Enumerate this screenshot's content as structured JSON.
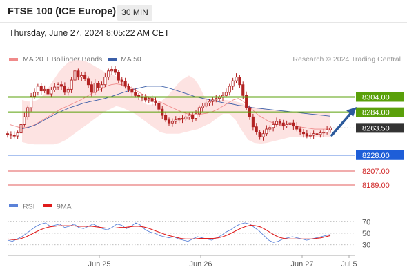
{
  "header": {
    "title": "FTSE 100 (ICE Europe)",
    "timeframe": "30 MIN",
    "datetime": "Thursday, June 27, 2024 8:05:22 AM CET",
    "credit": "Research © 2024 Trading Central"
  },
  "legend": {
    "bollinger": "MA 20 + Bollinger Bands",
    "ma50": "MA 50",
    "rsi": "RSI",
    "ma9": "9MA"
  },
  "colors": {
    "bollinger_line": "#f08a8a",
    "bollinger_fill": "#fde0df",
    "ma50": "#3b5ea8",
    "candle": "#b22222",
    "resistance": "#5aa00a",
    "support": "#1e5ed8",
    "target_line": "#e35b5b",
    "last_price": "#333333",
    "arrow": "#2c5a9c",
    "rsi": "#5b82d8",
    "rsi_ma": "#e01b1b"
  },
  "chart_data": [
    {
      "type": "candlestick",
      "ylim": [
        8180,
        8345
      ],
      "x_axis_ticks": [
        "Jun 25",
        "Jun 26",
        "Jun 27",
        "Jul 5"
      ],
      "price_levels": [
        {
          "value": 8304.0,
          "label": "8304.00",
          "kind": "resistance"
        },
        {
          "value": 8284.0,
          "label": "8284.00",
          "kind": "resistance"
        },
        {
          "value": 8263.5,
          "label": "8263.50",
          "kind": "last"
        },
        {
          "value": 8228.0,
          "label": "8228.00",
          "kind": "support"
        },
        {
          "value": 8207.0,
          "label": "8207.00",
          "kind": "target"
        },
        {
          "value": 8189.0,
          "label": "8189.00",
          "kind": "target"
        }
      ],
      "close": [
        8255,
        8254,
        8253,
        8257,
        8268,
        8278,
        8290,
        8305,
        8310,
        8318,
        8312,
        8314,
        8308,
        8313,
        8317,
        8320,
        8318,
        8310,
        8314,
        8326,
        8338,
        8330,
        8332,
        8328,
        8320,
        8310,
        8322,
        8316,
        8320,
        8330,
        8338,
        8340,
        8336,
        8326,
        8324,
        8318,
        8314,
        8310,
        8306,
        8304,
        8303,
        8300,
        8302,
        8298,
        8296,
        8288,
        8280,
        8274,
        8270,
        8272,
        8274,
        8276,
        8275,
        8278,
        8280,
        8276,
        8282,
        8290,
        8292,
        8296,
        8298,
        8300,
        8302,
        8304,
        8306,
        8310,
        8318,
        8325,
        8330,
        8320,
        8306,
        8290,
        8278,
        8265,
        8258,
        8252,
        8256,
        8262,
        8264,
        8268,
        8272,
        8270,
        8266,
        8268,
        8270,
        8266,
        8262,
        8258,
        8256,
        8253,
        8254,
        8256,
        8255,
        8257,
        8258,
        8261,
        8263.5
      ],
      "ma20": [
        8268,
        8266,
        8264,
        8264,
        8265,
        8268,
        8272,
        8276,
        8280,
        8284,
        8288,
        8291,
        8294,
        8297,
        8300,
        8304,
        8308,
        8311,
        8314,
        8318,
        8320,
        8321,
        8320,
        8318,
        8316,
        8312,
        8308,
        8305,
        8302,
        8299,
        8296,
        8293,
        8290,
        8287,
        8284,
        8282,
        8281,
        8281,
        8282,
        8283,
        8285,
        8288,
        8292,
        8296,
        8300,
        8302,
        8298,
        8292,
        8286,
        8280,
        8276,
        8272,
        8270,
        8268,
        8267,
        8266,
        8266,
        8265,
        8264,
        8263,
        8262,
        8262,
        8262,
        8262
      ],
      "bollinger_upper": [
        8300,
        8298,
        8298,
        8300,
        8306,
        8316,
        8326,
        8336,
        8344,
        8350,
        8352,
        8352,
        8351,
        8348,
        8344,
        8340,
        8336,
        8334,
        8331,
        8328,
        8322,
        8314,
        8304,
        8298,
        8294,
        8294,
        8296,
        8300,
        8306,
        8314,
        8322,
        8328,
        8332,
        8328,
        8318,
        8304,
        8300,
        8299,
        8300,
        8300,
        8299,
        8298,
        8296,
        8293,
        8291,
        8290,
        8289,
        8288,
        8287,
        8286,
        8285,
        8285,
        8285,
        8285,
        8285,
        8285,
        8285,
        8285,
        8285,
        8285
      ],
      "bollinger_lower": [
        8245,
        8243,
        8242,
        8242,
        8242,
        8242,
        8244,
        8248,
        8254,
        8260,
        8266,
        8272,
        8278,
        8284,
        8288,
        8292,
        8290,
        8286,
        8282,
        8276,
        8270,
        8264,
        8258,
        8256,
        8256,
        8256,
        8258,
        8260,
        8262,
        8266,
        8270,
        8276,
        8282,
        8282,
        8274,
        8260,
        8248,
        8244,
        8243,
        8244,
        8246,
        8248,
        8250,
        8252,
        8252,
        8252,
        8252,
        8252,
        8252,
        8252
      ],
      "ma50": [
        8262,
        8264,
        8267,
        8272,
        8277,
        8282,
        8286,
        8290,
        8293,
        8296,
        8298,
        8300,
        8302,
        8305,
        8308,
        8311,
        8314,
        8316,
        8318,
        8318,
        8318,
        8316,
        8313,
        8310,
        8307,
        8304,
        8302,
        8300,
        8298,
        8296,
        8295,
        8293,
        8292,
        8290,
        8289,
        8288,
        8287,
        8286,
        8285,
        8284,
        8283,
        8282,
        8281,
        8280,
        8279
      ]
    },
    {
      "type": "line",
      "name": "RSI",
      "ylim": [
        20,
        80
      ],
      "y_ticks": [
        30,
        50,
        70
      ],
      "rsi": [
        38,
        36,
        40,
        44,
        50,
        56,
        62,
        66,
        68,
        62,
        64,
        66,
        60,
        62,
        66,
        60,
        58,
        62,
        66,
        62,
        58,
        56,
        60,
        66,
        64,
        58,
        62,
        68,
        64,
        56,
        52,
        50,
        46,
        44,
        42,
        44,
        40,
        38,
        36,
        40,
        44,
        42,
        40,
        38,
        42,
        46,
        52,
        56,
        62,
        66,
        68,
        66,
        60,
        54,
        46,
        38,
        34,
        36,
        40,
        42,
        44,
        42,
        40,
        38,
        40,
        42,
        44,
        46,
        48
      ],
      "ma9": [
        40,
        39,
        39,
        41,
        44,
        48,
        52,
        56,
        59,
        61,
        62,
        63,
        63,
        63,
        63,
        62,
        62,
        62,
        62,
        61,
        60,
        59,
        59,
        59,
        60,
        60,
        61,
        62,
        62,
        61,
        59,
        56,
        53,
        50,
        47,
        45,
        43,
        41,
        40,
        40,
        40,
        41,
        41,
        41,
        41,
        42,
        44,
        47,
        51,
        55,
        59,
        62,
        64,
        63,
        61,
        57,
        52,
        47,
        43,
        41,
        40,
        40,
        40,
        40,
        40,
        40,
        41,
        42,
        44,
        46
      ]
    }
  ]
}
